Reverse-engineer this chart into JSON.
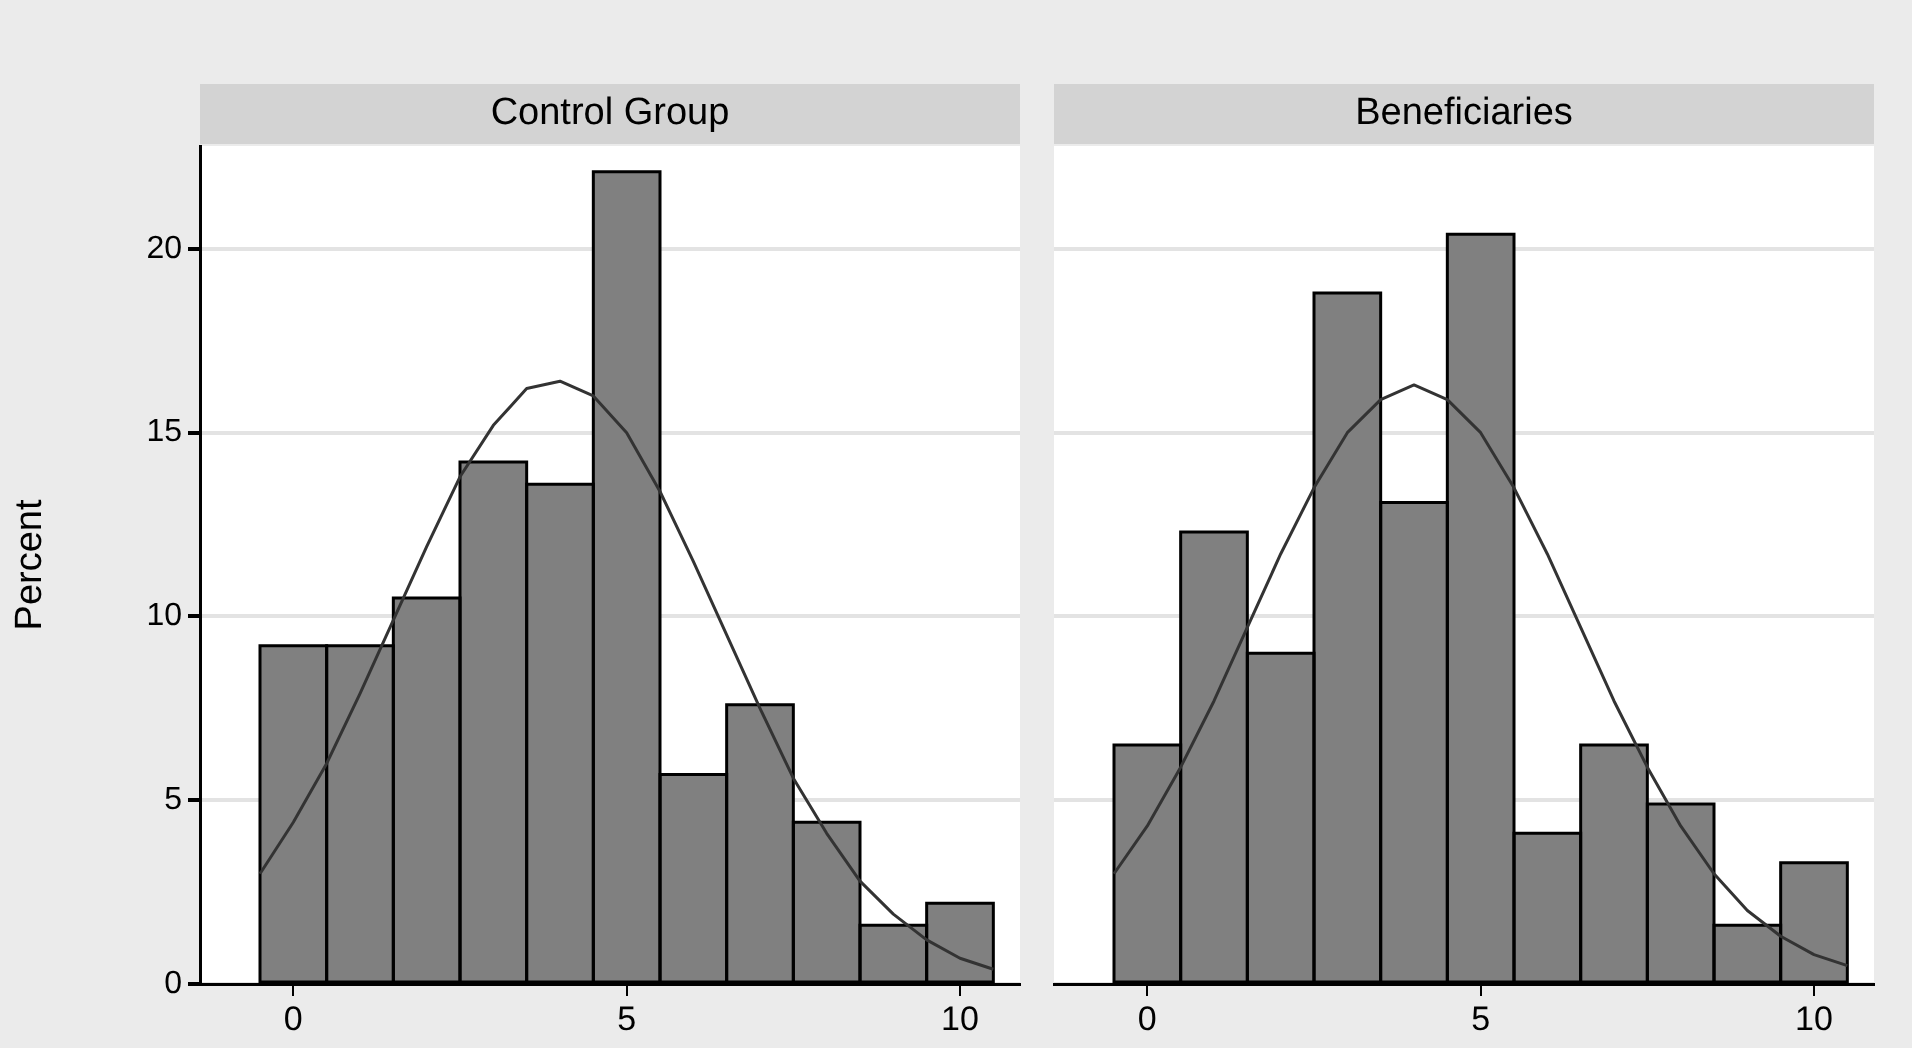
{
  "chart_data": [
    {
      "type": "histogram",
      "title": "Control Group",
      "ylabel": "Percent",
      "bins": [
        -0.5,
        0.5,
        1.5,
        2.5,
        3.5,
        4.5,
        5.5,
        6.5,
        7.5,
        8.5,
        9.5,
        10.5
      ],
      "values": [
        9.2,
        9.2,
        10.5,
        14.2,
        13.6,
        22.1,
        5.7,
        7.6,
        4.4,
        1.6,
        2.2
      ],
      "color": "#808080",
      "series": [
        {
          "type": "line",
          "color": "#333333",
          "x": [
            -0.5,
            0,
            0.5,
            1,
            1.5,
            2,
            2.5,
            3,
            3.5,
            4,
            4.5,
            5,
            5.5,
            6,
            6.5,
            7,
            7.5,
            8,
            8.5,
            9,
            9.5,
            10,
            10.5
          ],
          "values": [
            3.0,
            4.4,
            6.0,
            7.9,
            9.9,
            11.9,
            13.8,
            15.2,
            16.2,
            16.4,
            16.0,
            15.0,
            13.4,
            11.5,
            9.5,
            7.5,
            5.6,
            4.1,
            2.8,
            1.9,
            1.2,
            0.7,
            0.4
          ]
        }
      ],
      "xlim": [
        -1.4,
        10.9
      ],
      "xticks": [
        0,
        5,
        10
      ],
      "ylim": [
        0,
        22.8
      ],
      "yticks": [
        0,
        5,
        10,
        15,
        20
      ],
      "grid": "y",
      "legend": false
    },
    {
      "type": "histogram",
      "title": "Beneficiaries",
      "bins": [
        -0.5,
        0.5,
        1.5,
        2.5,
        3.5,
        4.5,
        5.5,
        6.5,
        7.5,
        8.5,
        9.5,
        10.5
      ],
      "values": [
        6.5,
        12.3,
        9.0,
        18.8,
        13.1,
        20.4,
        4.1,
        6.5,
        4.9,
        1.6,
        3.3
      ],
      "color": "#808080",
      "series": [
        {
          "type": "line",
          "color": "#333333",
          "x": [
            -0.5,
            0,
            0.5,
            1,
            1.5,
            2,
            2.5,
            3,
            3.5,
            4,
            4.5,
            5,
            5.5,
            6,
            6.5,
            7,
            7.5,
            8,
            8.5,
            9,
            9.5,
            10,
            10.5
          ],
          "values": [
            3.0,
            4.3,
            5.9,
            7.7,
            9.7,
            11.7,
            13.5,
            15.0,
            15.9,
            16.3,
            15.9,
            15.0,
            13.5,
            11.7,
            9.7,
            7.7,
            5.9,
            4.3,
            3.0,
            2.0,
            1.3,
            0.8,
            0.5
          ]
        }
      ],
      "xlim": [
        -1.4,
        10.9
      ],
      "xticks": [
        0,
        5,
        10
      ],
      "ylim": [
        0,
        22.8
      ],
      "yticks": [
        0,
        5,
        10,
        15,
        20
      ],
      "grid": "y",
      "tick_labels": "x",
      "legend": false
    }
  ]
}
